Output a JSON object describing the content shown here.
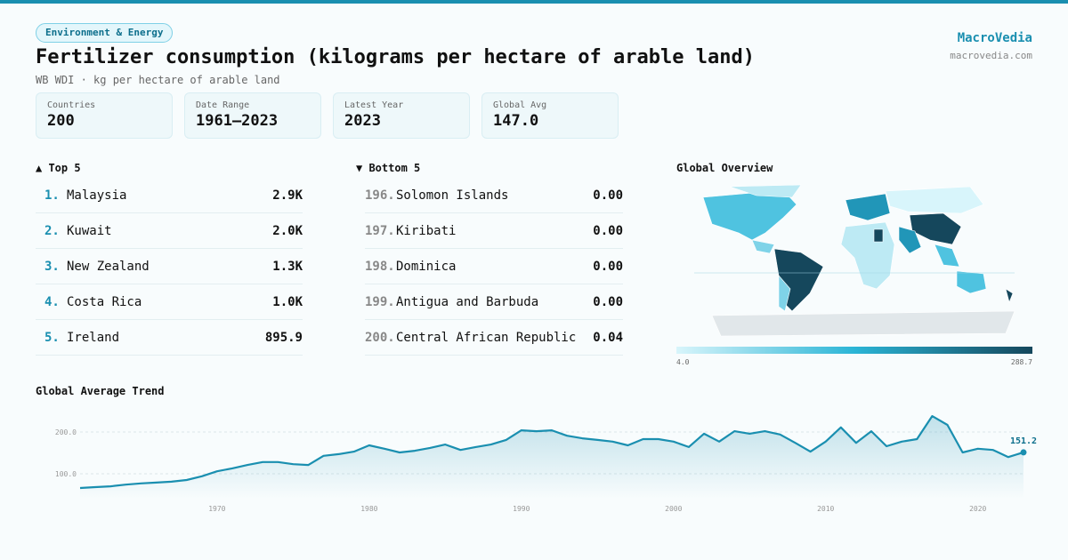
{
  "header": {
    "badge": "Environment & Energy",
    "title": "Fertilizer consumption (kilograms per hectare of arable land)",
    "subtitle": "WB WDI · kg per hectare of arable land",
    "brand": "MacroVedia",
    "site": "macrovedia.com"
  },
  "stats": [
    {
      "label": "Countries",
      "value": "200"
    },
    {
      "label": "Date Range",
      "value": "1961–2023"
    },
    {
      "label": "Latest Year",
      "value": "2023"
    },
    {
      "label": "Global Avg",
      "value": "147.0"
    }
  ],
  "top": {
    "heading": "▲ Top 5",
    "rows": [
      {
        "rank": "1.",
        "name": "Malaysia",
        "value": "2.9K"
      },
      {
        "rank": "2.",
        "name": "Kuwait",
        "value": "2.0K"
      },
      {
        "rank": "3.",
        "name": "New Zealand",
        "value": "1.3K"
      },
      {
        "rank": "4.",
        "name": "Costa Rica",
        "value": "1.0K"
      },
      {
        "rank": "5.",
        "name": "Ireland",
        "value": "895.9"
      }
    ]
  },
  "bottom": {
    "heading": "▼ Bottom 5",
    "rows": [
      {
        "rank": "196.",
        "name": "Solomon Islands",
        "value": "0.00"
      },
      {
        "rank": "197.",
        "name": "Kiribati",
        "value": "0.00"
      },
      {
        "rank": "198.",
        "name": "Dominica",
        "value": "0.00"
      },
      {
        "rank": "199.",
        "name": "Antigua and Barbuda",
        "value": "0.00"
      },
      {
        "rank": "200.",
        "name": "Central African Republic",
        "value": "0.04"
      }
    ]
  },
  "map": {
    "title": "Global Overview",
    "legend_min": "4.0",
    "legend_max": "288.7"
  },
  "chart_data": {
    "type": "line",
    "title": "Global Average Trend",
    "color": "#1a8fb0",
    "x": [
      1961,
      1962,
      1963,
      1964,
      1965,
      1966,
      1967,
      1968,
      1969,
      1970,
      1971,
      1972,
      1973,
      1974,
      1975,
      1976,
      1977,
      1978,
      1979,
      1980,
      1981,
      1982,
      1983,
      1984,
      1985,
      1986,
      1987,
      1988,
      1989,
      1990,
      1991,
      1992,
      1993,
      1994,
      1995,
      1996,
      1997,
      1998,
      1999,
      2000,
      2001,
      2002,
      2003,
      2004,
      2005,
      2006,
      2007,
      2008,
      2009,
      2010,
      2011,
      2012,
      2013,
      2014,
      2015,
      2016,
      2017,
      2018,
      2019,
      2020,
      2021,
      2022,
      2023
    ],
    "values": [
      66,
      68,
      70,
      74,
      77,
      79,
      81,
      85,
      94,
      106,
      113,
      121,
      128,
      128,
      123,
      121,
      143,
      147,
      153,
      168,
      160,
      151,
      155,
      162,
      170,
      157,
      164,
      170,
      181,
      204,
      202,
      204,
      191,
      185,
      181,
      177,
      168,
      183,
      183,
      177,
      164,
      196,
      177,
      202,
      196,
      202,
      194,
      174,
      153,
      177,
      211,
      174,
      202,
      166,
      177,
      183,
      238,
      217,
      151,
      160,
      157,
      140,
      151.2
    ],
    "xlim": [
      1961,
      2023
    ],
    "ylim": [
      40,
      250
    ],
    "xticks": [
      1970,
      1980,
      1990,
      2000,
      2010,
      2020
    ],
    "yticks": [
      {
        "value": 100,
        "label": "100.0"
      },
      {
        "value": 200,
        "label": "200.0"
      }
    ],
    "grid": true
  }
}
